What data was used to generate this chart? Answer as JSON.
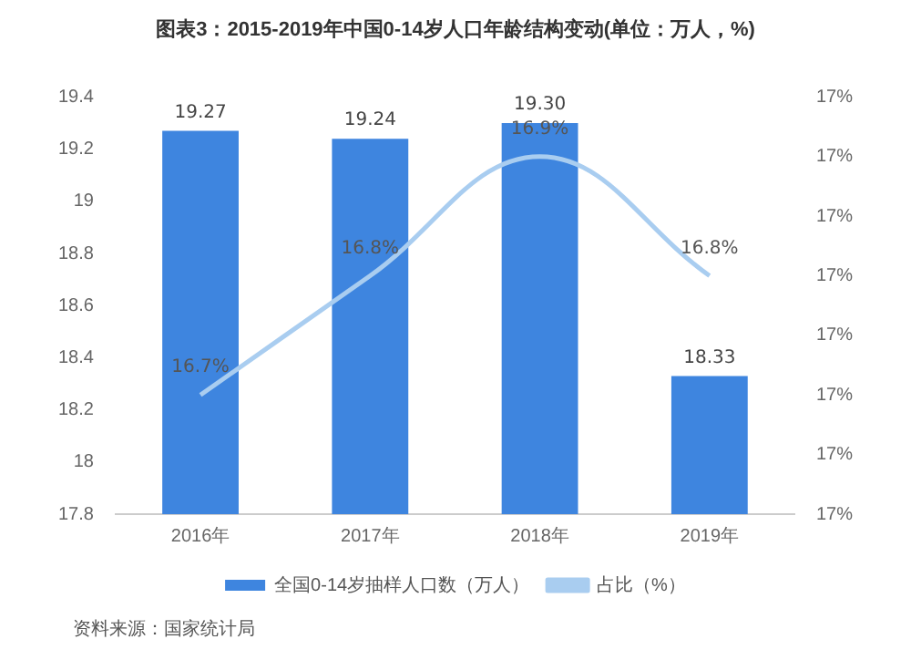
{
  "chart_data": {
    "type": "bar",
    "title": "图表3：2015-2019年中国0-14岁人口年龄结构变动(单位：万人，%)",
    "categories": [
      "2016年",
      "2017年",
      "2018年",
      "2019年"
    ],
    "series": [
      {
        "name": "全国0-14岁抽样人口数（万人）",
        "color": "#3e85df",
        "values": [
          19.27,
          19.24,
          19.3,
          18.33
        ],
        "value_labels": [
          "19.27",
          "19.24",
          "19.30",
          "18.33"
        ]
      },
      {
        "name": "占比（%）",
        "type": "line",
        "axis": "y2",
        "color": "#a9cdf0",
        "values": [
          16.7,
          16.8,
          16.9,
          16.8
        ],
        "value_labels": [
          "16.7%",
          "16.8%",
          "16.9%",
          "16.8%"
        ]
      }
    ],
    "ylim": [
      17.8,
      19.4
    ],
    "yticks": [
      17.8,
      18,
      18.2,
      18.4,
      18.6,
      18.8,
      19,
      19.2,
      19.4
    ],
    "y2lim": [
      16.6,
      16.95
    ],
    "y2ticks": [
      {
        "value": 16.6,
        "label": "17%"
      },
      {
        "value": 16.65,
        "label": "17%"
      },
      {
        "value": 16.7,
        "label": "17%"
      },
      {
        "value": 16.75,
        "label": "17%"
      },
      {
        "value": 16.8,
        "label": "17%"
      },
      {
        "value": 16.85,
        "label": "17%"
      },
      {
        "value": 16.9,
        "label": "17%"
      },
      {
        "value": 16.95,
        "label": "17%"
      }
    ],
    "grid": false,
    "legend": "bottom",
    "marker": "none",
    "annotations": [
      "资料来源：国家统计局"
    ]
  }
}
